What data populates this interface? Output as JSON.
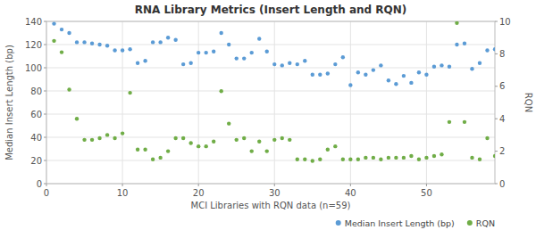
{
  "chart_data": {
    "type": "scatter",
    "title": "RNA Library Metrics (Insert Length and RQN)",
    "xlabel": "MCI Libraries with RQN data (n=59)",
    "ylabel": "Median Insert Length (bp)",
    "y2label": "RQN",
    "xlim": [
      0,
      59
    ],
    "ylim": [
      0,
      140
    ],
    "y2lim": [
      0.0,
      10.0
    ],
    "xticks": [
      0,
      10,
      20,
      30,
      40,
      50
    ],
    "yticks": [
      0,
      20,
      40,
      60,
      80,
      100,
      120,
      140
    ],
    "y2ticks": [
      0,
      2,
      4,
      6,
      8,
      10
    ],
    "grid": true,
    "legend": "lower right",
    "series": [
      {
        "name": "Median Insert Length (bp)",
        "color": "#5B9BD5",
        "axis": "y",
        "x": [
          1,
          2,
          3,
          4,
          5,
          6,
          7,
          8,
          9,
          10,
          11,
          12,
          13,
          14,
          15,
          16,
          17,
          18,
          19,
          20,
          21,
          22,
          23,
          24,
          25,
          26,
          27,
          28,
          29,
          30,
          31,
          32,
          33,
          34,
          35,
          36,
          37,
          38,
          39,
          40,
          41,
          42,
          43,
          44,
          45,
          46,
          47,
          48,
          49,
          50,
          51,
          52,
          53,
          54,
          55,
          56,
          57,
          58,
          59
        ],
        "values": [
          138,
          133,
          130,
          122,
          122,
          121,
          120,
          119,
          115,
          115,
          116,
          104,
          106,
          122,
          122,
          126,
          124,
          103,
          104,
          113,
          113,
          114,
          130,
          120,
          108,
          108,
          113,
          125,
          114,
          103,
          102,
          104,
          103,
          106,
          94,
          94,
          95,
          103,
          109,
          85,
          96,
          94,
          98,
          102,
          89,
          86,
          93,
          87,
          96,
          94,
          101,
          102,
          101,
          120,
          121,
          99,
          104,
          115,
          116
        ]
      },
      {
        "name": "RQN",
        "color": "#70AD47",
        "axis": "y2",
        "x": [
          1,
          2,
          3,
          4,
          5,
          6,
          7,
          8,
          9,
          10,
          11,
          12,
          13,
          14,
          15,
          16,
          17,
          18,
          19,
          20,
          21,
          22,
          23,
          24,
          25,
          26,
          27,
          28,
          29,
          30,
          31,
          32,
          33,
          34,
          35,
          36,
          37,
          38,
          39,
          40,
          41,
          42,
          43,
          44,
          45,
          46,
          47,
          48,
          49,
          50,
          51,
          52,
          53,
          54,
          55,
          56,
          57,
          58,
          59
        ],
        "values": [
          8.8,
          8.1,
          5.8,
          4.0,
          2.7,
          2.7,
          2.8,
          3.0,
          2.8,
          3.1,
          5.6,
          2.1,
          2.1,
          1.5,
          1.6,
          2.0,
          2.8,
          2.8,
          2.5,
          2.3,
          2.3,
          2.6,
          5.7,
          3.7,
          2.7,
          2.8,
          2.0,
          2.6,
          2.0,
          2.7,
          2.8,
          2.7,
          1.5,
          1.5,
          1.4,
          1.5,
          2.1,
          2.3,
          1.5,
          1.5,
          1.5,
          1.6,
          1.6,
          1.5,
          1.6,
          1.6,
          1.6,
          1.7,
          1.5,
          1.6,
          1.7,
          1.8,
          3.8,
          9.9,
          3.8,
          1.6,
          1.5,
          2.8,
          1.7
        ]
      }
    ]
  }
}
